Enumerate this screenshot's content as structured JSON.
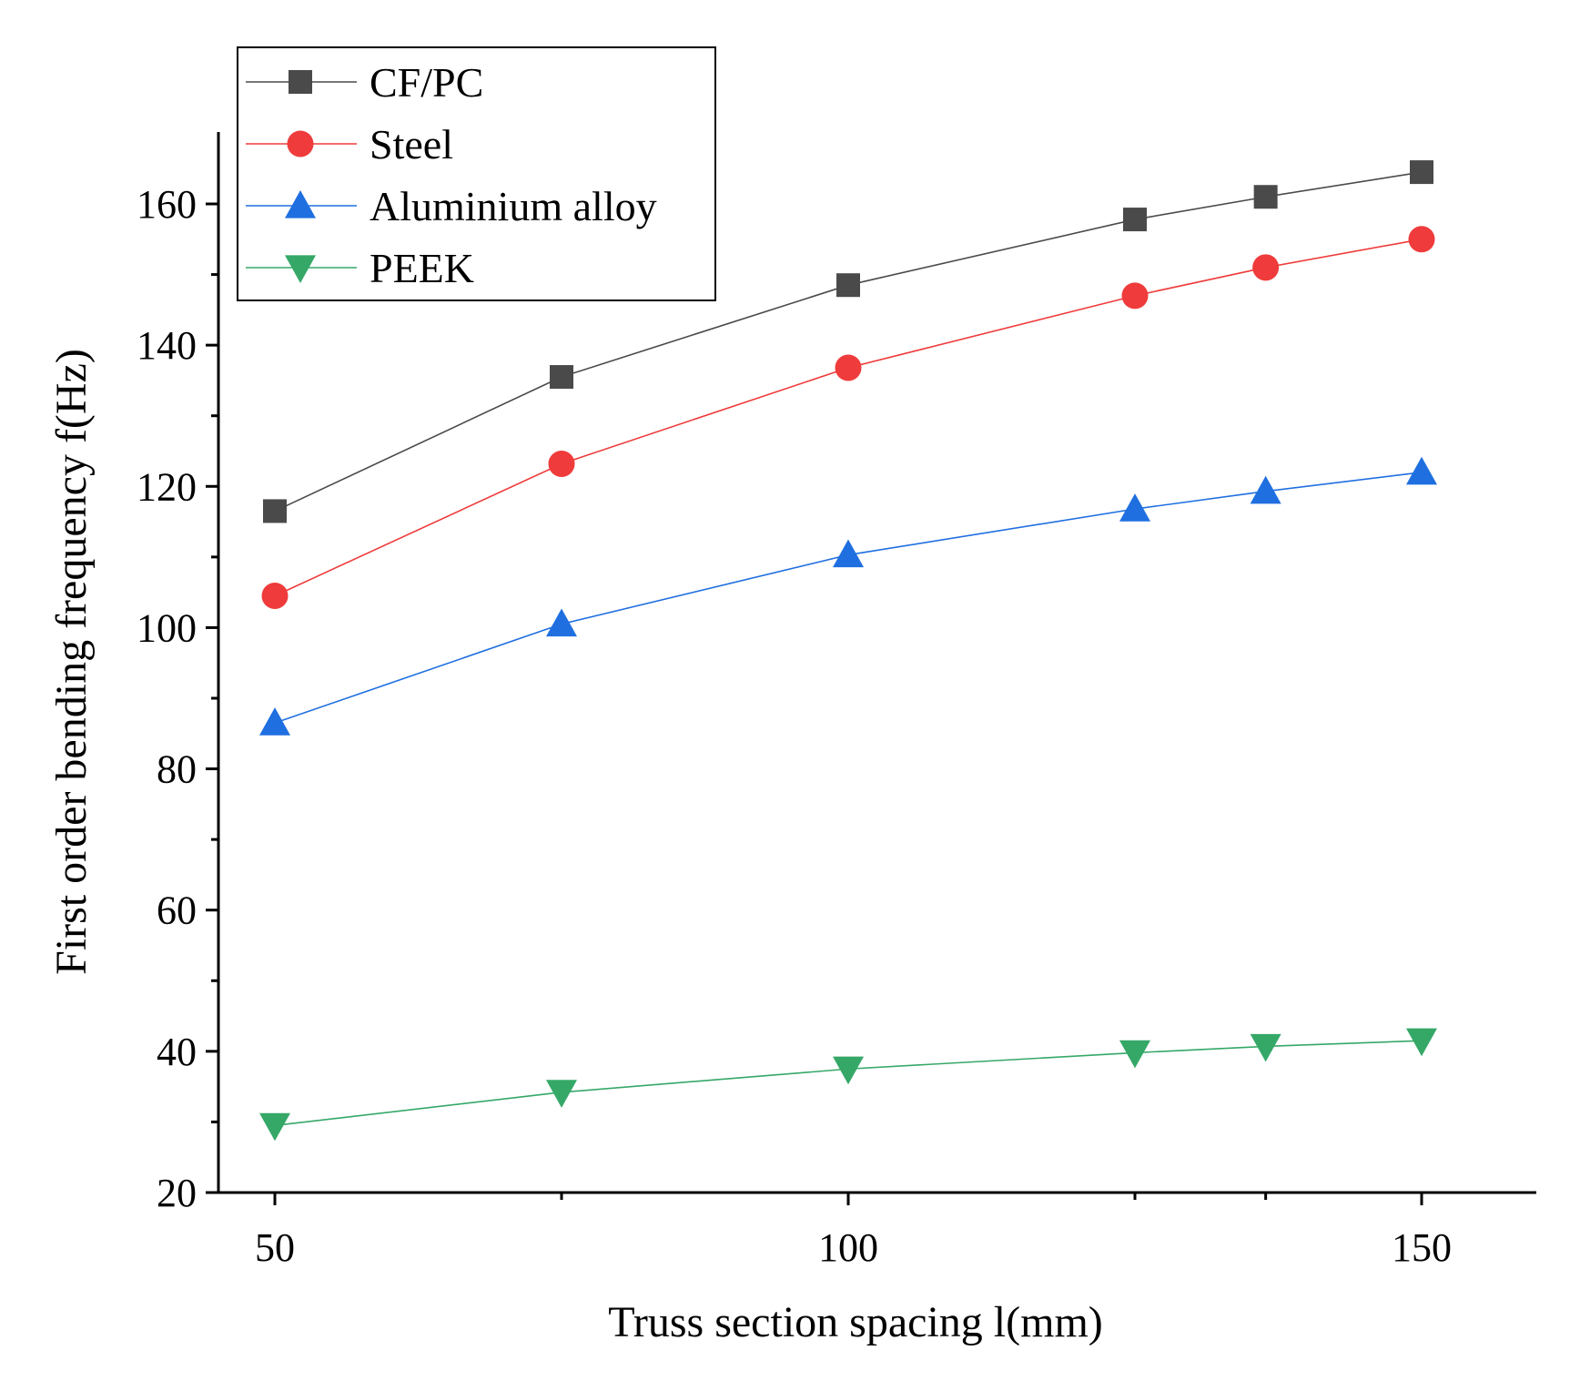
{
  "chart_data": {
    "type": "line",
    "title": "",
    "xlabel": "Truss section spacing l(mm)",
    "ylabel": "First order bending frequency f(Hz)",
    "xlim": [
      45,
      155
    ],
    "ylim": [
      20,
      170
    ],
    "xticks": [
      50,
      100,
      150
    ],
    "xminor_ticks": [
      75,
      125,
      136.4
    ],
    "yticks": [
      20,
      40,
      60,
      80,
      100,
      120,
      140,
      160
    ],
    "yminor_ticks": [
      30,
      50,
      70,
      90,
      110,
      130,
      150
    ],
    "grid": false,
    "legend_position": "top-left",
    "x": [
      50,
      75,
      100,
      125,
      136.4,
      150
    ],
    "series": [
      {
        "name": "CF/PC",
        "marker": "square",
        "color": "#4a4a4a",
        "values": [
          116.5,
          135.5,
          148.5,
          157.8,
          161.0,
          164.5
        ]
      },
      {
        "name": "Steel",
        "marker": "circle",
        "color": "#ef3b3b",
        "values": [
          104.5,
          123.2,
          136.8,
          147.0,
          151.0,
          155.0
        ]
      },
      {
        "name": "Aluminium alloy",
        "marker": "triangle-up",
        "color": "#1f6fe0",
        "values": [
          86.5,
          100.5,
          110.3,
          116.8,
          119.3,
          122.0
        ]
      },
      {
        "name": "PEEK",
        "marker": "triangle-down",
        "color": "#35a868",
        "values": [
          29.5,
          34.2,
          37.5,
          39.8,
          40.7,
          41.5
        ]
      }
    ]
  }
}
